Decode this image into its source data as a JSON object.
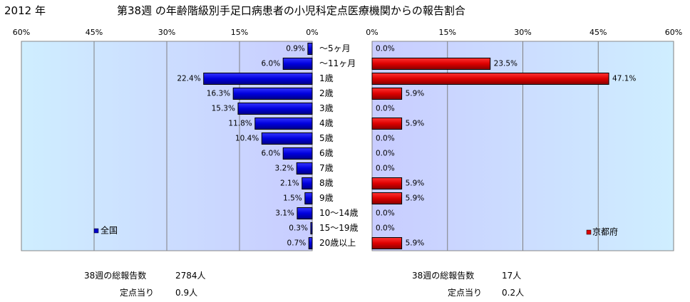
{
  "header": {
    "year": "2012 年",
    "title": "第38週 の年齢階級別手足口病患者の小児科定点医療機関からの報告割合"
  },
  "chart_data": {
    "type": "bar",
    "categories": [
      "～5ヶ月",
      "～11ヶ月",
      "1歳",
      "2歳",
      "3歳",
      "4歳",
      "5歳",
      "6歳",
      "7歳",
      "8歳",
      "9歳",
      "10～14歳",
      "15～19歳",
      "20歳以上"
    ],
    "series": [
      {
        "name": "全国",
        "side": "left",
        "color": "#0000cc",
        "values": [
          0.9,
          6.0,
          22.4,
          16.3,
          15.3,
          11.8,
          10.4,
          6.0,
          3.2,
          2.1,
          1.5,
          3.1,
          0.3,
          0.7
        ],
        "labels": [
          "0.9%",
          "6.0%",
          "22.4%",
          "16.3%",
          "15.3%",
          "11.8%",
          "10.4%",
          "6.0%",
          "3.2%",
          "2.1%",
          "1.5%",
          "3.1%",
          "0.3%",
          "0.7%"
        ]
      },
      {
        "name": "京都府",
        "side": "right",
        "color": "#dd0000",
        "values": [
          0.0,
          23.5,
          47.1,
          5.9,
          0.0,
          5.9,
          0.0,
          0.0,
          0.0,
          5.9,
          5.9,
          0.0,
          0.0,
          5.9
        ],
        "labels": [
          "0.0%",
          "23.5%",
          "47.1%",
          "5.9%",
          "0.0%",
          "5.9%",
          "0.0%",
          "0.0%",
          "0.0%",
          "5.9%",
          "5.9%",
          "0.0%",
          "0.0%",
          "5.9%"
        ]
      }
    ],
    "xlim": [
      0,
      60
    ],
    "left_ticks": [
      "60%",
      "45%",
      "30%",
      "15%",
      "0%"
    ],
    "right_ticks": [
      "0%",
      "15%",
      "30%",
      "45%",
      "60%"
    ],
    "grid": true,
    "plot_background": "#ccccff",
    "legend": {
      "left": "bottom-left",
      "right": "bottom-right"
    }
  },
  "footer": {
    "national": {
      "total_label": "38週の総報告数",
      "total_value": "2784人",
      "per_label": "定点当り",
      "per_value": "0.9人"
    },
    "kyoto": {
      "total_label": "38週の総報告数",
      "total_value": "17人",
      "per_label": "定点当り",
      "per_value": "0.2人"
    }
  }
}
